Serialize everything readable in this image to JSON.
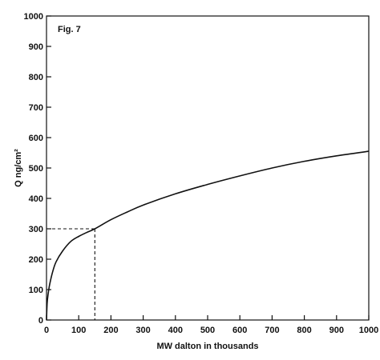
{
  "chart_data": {
    "type": "line",
    "figure_label": "Fig. 7",
    "xlabel": "MW dalton in thousands",
    "ylabel": "Q ng/cm²",
    "xlim": [
      0,
      1000
    ],
    "ylim": [
      0,
      1000
    ],
    "x_ticks": [
      0,
      100,
      200,
      300,
      400,
      500,
      600,
      700,
      800,
      900,
      1000
    ],
    "y_ticks": [
      0,
      100,
      200,
      300,
      400,
      500,
      600,
      700,
      800,
      900,
      1000
    ],
    "grid": false,
    "series": [
      {
        "x": [
          0,
          2,
          5,
          10,
          20,
          30,
          50,
          75,
          100,
          125,
          150,
          200,
          250,
          300,
          400,
          500,
          600,
          700,
          800,
          900,
          1000
        ],
        "y": [
          0,
          55,
          85,
          118,
          162,
          192,
          227,
          258,
          275,
          288,
          300,
          330,
          355,
          378,
          415,
          446,
          474,
          500,
          522,
          540,
          555
        ],
        "style": "solid",
        "color": "#111111"
      }
    ],
    "reference_lines": [
      {
        "from": [
          0,
          300
        ],
        "to": [
          150,
          300
        ],
        "style": "dashed"
      },
      {
        "from": [
          150,
          300
        ],
        "to": [
          150,
          0
        ],
        "style": "dashed"
      }
    ]
  }
}
